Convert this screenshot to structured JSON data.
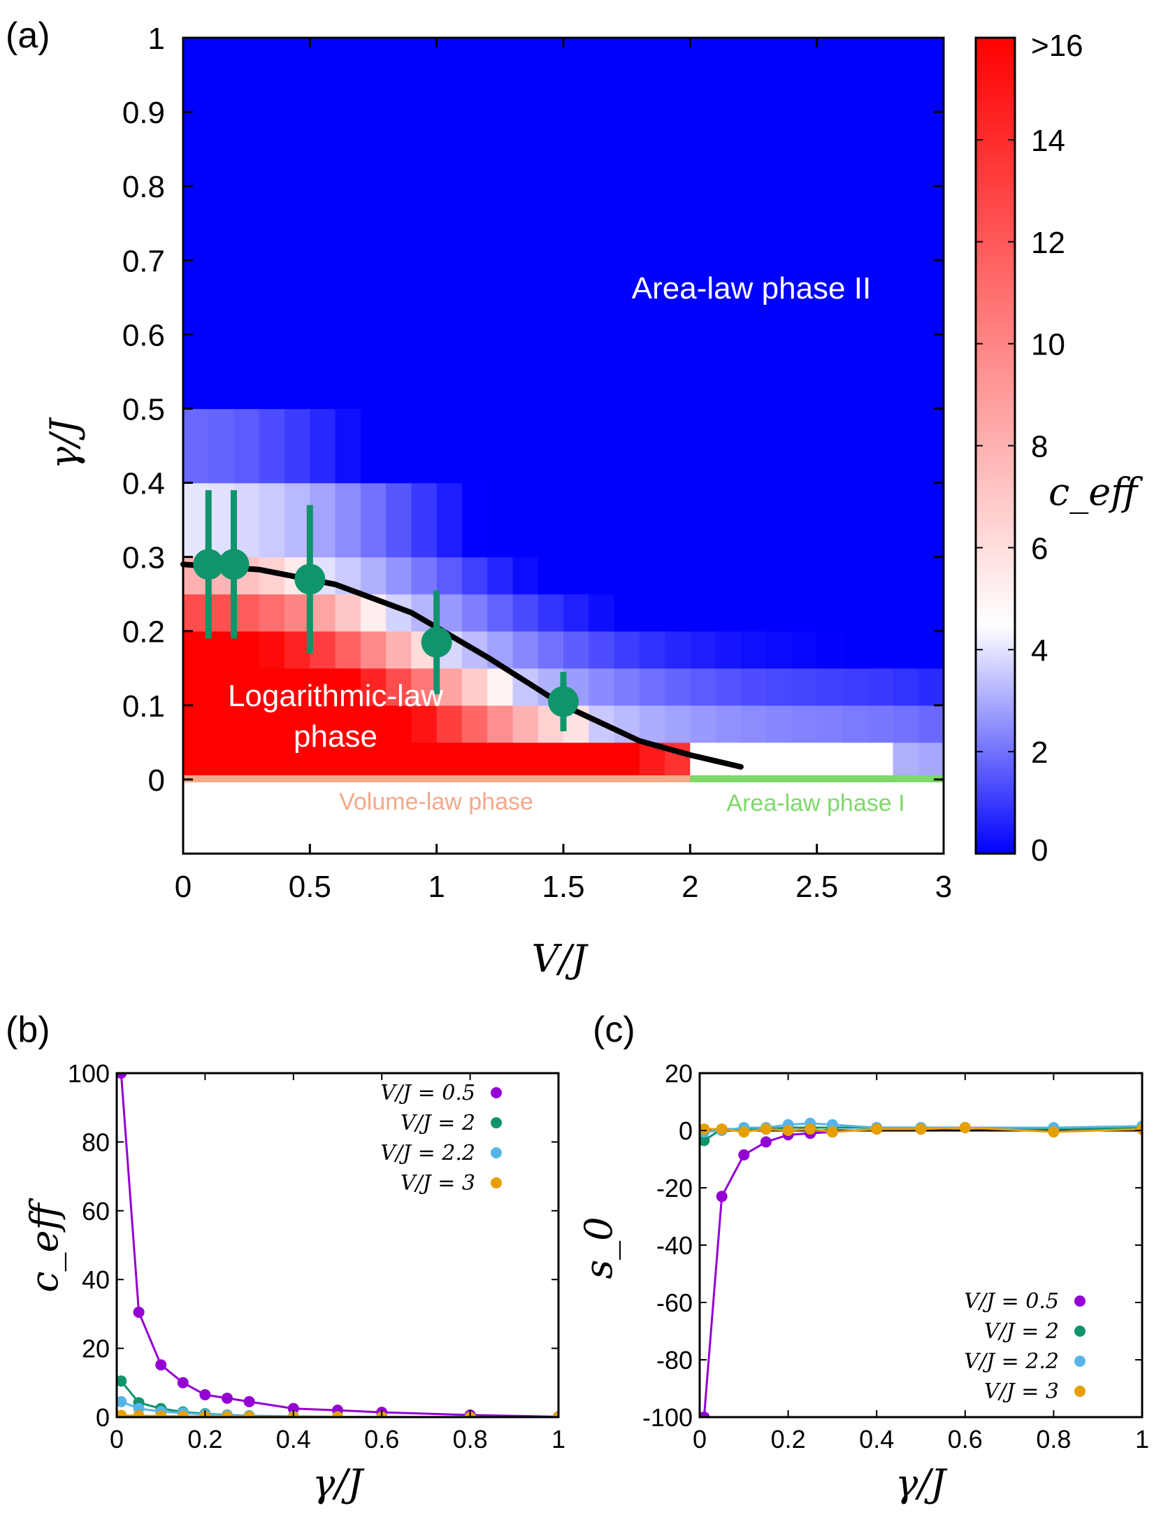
{
  "chart_data": [
    {
      "panel": "(a)",
      "type": "heatmap",
      "xlabel": "V/J",
      "ylabel": "γ/J",
      "xlim": [
        0,
        3
      ],
      "ylim": [
        -0.1,
        1
      ],
      "xticks": [
        "0",
        "0.5",
        "1",
        "1.5",
        "2",
        "2.5",
        "3"
      ],
      "yticks": [
        "0",
        "0.1",
        "0.2",
        "0.3",
        "0.4",
        "0.5",
        "0.6",
        "0.7",
        "0.8",
        "0.9",
        "1"
      ],
      "colorbar": {
        "label": "c_eff",
        "range": [
          0,
          16
        ],
        "ticks": [
          "0",
          "2",
          "4",
          "6",
          "8",
          "10",
          "12",
          "14",
          ">16"
        ],
        "low_color": "#0000ff",
        "mid_color": "#ffffff",
        "high_color": "#ff0000",
        "mid_value": 4.5
      },
      "gamma_rows": [
        0,
        0.05,
        0.1,
        0.15,
        0.2,
        0.25,
        0.3,
        0.4,
        0.5,
        0.6,
        0.8
      ],
      "annotations": {
        "area2": "Area-law phase II",
        "log1": "Logarithmic-law",
        "log2": "phase",
        "volume": "Volume-law phase",
        "area1": "Area-law phase I"
      },
      "phase_line_colors": {
        "volume": "#f4a988",
        "area1": "#7fd86a"
      },
      "critical_points": [
        {
          "V": 0.1,
          "gamma": 0.29,
          "err_low": 0.19,
          "err_high": 0.39
        },
        {
          "V": 0.2,
          "gamma": 0.29,
          "err_low": 0.19,
          "err_high": 0.39
        },
        {
          "V": 0.5,
          "gamma": 0.27,
          "err_low": 0.17,
          "err_high": 0.37
        },
        {
          "V": 1.0,
          "gamma": 0.185,
          "err_low": 0.115,
          "err_high": 0.255
        },
        {
          "V": 1.5,
          "gamma": 0.105,
          "err_low": 0.065,
          "err_high": 0.145
        }
      ],
      "critical_point_color": "#10946b",
      "fit_curve": {
        "V": [
          0,
          0.3,
          0.6,
          0.9,
          1.2,
          1.5,
          1.8,
          2.0,
          2.2
        ],
        "gamma": [
          0.29,
          0.283,
          0.263,
          0.225,
          0.165,
          0.1,
          0.052,
          0.033,
          0.017
        ]
      }
    },
    {
      "panel": "(b)",
      "type": "line",
      "xlabel": "γ/J",
      "ylabel": "c_eff",
      "xlim": [
        0,
        1
      ],
      "ylim": [
        0,
        100
      ],
      "xticks": [
        "0",
        "0.2",
        "0.4",
        "0.6",
        "0.8",
        "1"
      ],
      "yticks": [
        "0",
        "20",
        "40",
        "60",
        "80",
        "100"
      ],
      "x": [
        0.01,
        0.05,
        0.1,
        0.15,
        0.2,
        0.25,
        0.3,
        0.4,
        0.5,
        0.6,
        0.8,
        1.0
      ],
      "series": [
        {
          "name": "V/J = 0.5",
          "color": "#9400d3",
          "values": [
            100,
            30.5,
            15.2,
            10,
            6.5,
            5.5,
            4.5,
            2.5,
            2,
            1.4,
            0.6,
            0.1
          ]
        },
        {
          "name": "V/J = 2",
          "color": "#10946b",
          "values": [
            10.5,
            4.2,
            2.5,
            1.5,
            1,
            0.6,
            0.4,
            0.2,
            0.1,
            0.05,
            0.02,
            0.01
          ]
        },
        {
          "name": "V/J = 2.2",
          "color": "#56b4e9",
          "values": [
            4.5,
            2.5,
            1.6,
            1.2,
            0.8,
            0.5,
            0.3,
            0.2,
            0.1,
            0.05,
            0.02,
            0.01
          ]
        },
        {
          "name": "V/J = 3",
          "color": "#e69f00",
          "values": [
            0.5,
            0.4,
            0.3,
            0.2,
            0.2,
            0.1,
            0.1,
            0.05,
            0.05,
            0.02,
            0.01,
            0.01
          ]
        }
      ],
      "legend": "top-right"
    },
    {
      "panel": "(c)",
      "type": "line",
      "xlabel": "γ/J",
      "ylabel": "s_0",
      "xlim": [
        0,
        1
      ],
      "ylim": [
        -100,
        20
      ],
      "xticks": [
        "0",
        "0.2",
        "0.4",
        "0.6",
        "0.8",
        "1"
      ],
      "yticks": [
        "-100",
        "-80",
        "-60",
        "-40",
        "-20",
        "0",
        "20"
      ],
      "x": [
        0.01,
        0.05,
        0.1,
        0.15,
        0.2,
        0.25,
        0.3,
        0.4,
        0.5,
        0.6,
        0.8,
        1.0
      ],
      "series": [
        {
          "name": "V/J = 0.5",
          "color": "#9400d3",
          "values": [
            -100,
            -23,
            -8.5,
            -4,
            -1.5,
            -1,
            -0.5,
            0.5,
            0.5,
            1,
            0.5,
            0.5
          ]
        },
        {
          "name": "V/J = 2",
          "color": "#10946b",
          "values": [
            -3.5,
            0.5,
            0.5,
            0.5,
            1,
            1,
            1,
            1,
            1,
            1,
            0.5,
            1
          ]
        },
        {
          "name": "V/J = 2.2",
          "color": "#56b4e9",
          "values": [
            -0.5,
            0,
            1,
            1,
            2,
            2.5,
            2,
            1,
            1,
            1,
            1,
            1.5
          ]
        },
        {
          "name": "V/J = 3",
          "color": "#e69f00",
          "values": [
            0.5,
            0.5,
            -0.5,
            0.5,
            0,
            0.5,
            -0.5,
            0.5,
            0.5,
            1,
            -0.5,
            0.5
          ]
        }
      ],
      "legend": "bottom-right"
    }
  ],
  "panel_labels": {
    "a": "(a)",
    "b": "(b)",
    "c": "(c)"
  }
}
